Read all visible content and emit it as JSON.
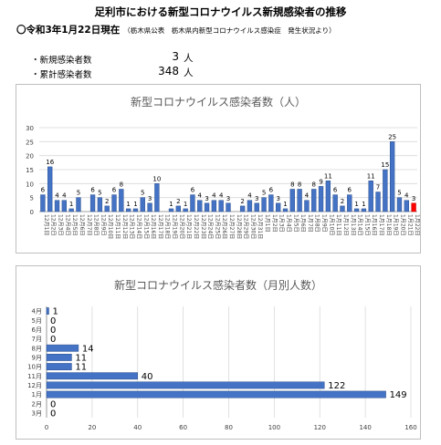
{
  "page": {
    "title": "足利市における新型コロナウイルス新規感染者の推移",
    "status_heading": "〇令和3年1月22日現在",
    "source_note": "（栃木県公表　栃木県内新型コロナウイルス感染症　発生状況より）",
    "stats": [
      {
        "label": "・新規感染者数",
        "value": "3",
        "unit": "人"
      },
      {
        "label": "・累計感染者数",
        "value": "348",
        "unit": "人"
      }
    ]
  },
  "colors": {
    "bar": "#4472c4",
    "bar_border": "#2f528f",
    "highlight": "#ff0000",
    "grid": "#d9d9d9",
    "axis": "#808080"
  },
  "chart_data": [
    {
      "type": "bar",
      "title": "新型コロナウイルス感染者数（人）",
      "categories": [
        "12月1日",
        "12月2日",
        "12月3日",
        "12月4日",
        "12月5日",
        "12月6日",
        "12月7日",
        "12月8日",
        "12月9日",
        "12月10日",
        "12月11日",
        "12月12日",
        "12月13日",
        "12月14日",
        "12月15日",
        "12月16日",
        "12月17日",
        "12月18日",
        "12月19日",
        "12月20日",
        "12月21日",
        "12月22日",
        "12月23日",
        "12月24日",
        "12月25日",
        "12月26日",
        "12月27日",
        "12月28日",
        "12月29日",
        "12月30日",
        "12月31日",
        "1月1日",
        "1月2日",
        "1月3日",
        "1月4日",
        "1月5日",
        "1月6日",
        "1月7日",
        "1月8日",
        "1月9日",
        "1月10日",
        "1月11日",
        "1月12日",
        "1月13日",
        "1月14日",
        "1月15日",
        "1月16日",
        "1月17日",
        "1月18日",
        "1月19日",
        "1月20日",
        "1月21日",
        "1月22日"
      ],
      "values": [
        6,
        16,
        4,
        4,
        1,
        5,
        null,
        6,
        5,
        2,
        6,
        8,
        1,
        1,
        5,
        3,
        10,
        null,
        1,
        2,
        1,
        6,
        4,
        3,
        4,
        4,
        3,
        null,
        2,
        4,
        3,
        5,
        6,
        3,
        1,
        8,
        8,
        4,
        8,
        9,
        11,
        6,
        2,
        6,
        1,
        1,
        11,
        7,
        15,
        25,
        5,
        4,
        3
      ],
      "highlight_last": true,
      "ylim": [
        0,
        30
      ],
      "yticks": [
        0,
        5,
        10,
        15,
        20,
        25,
        30
      ],
      "grid": true
    },
    {
      "type": "bar",
      "orientation": "horizontal",
      "title": "新型コロナウイルス感染者数（月別人数）",
      "categories": [
        "4月",
        "5月",
        "6月",
        "7月",
        "8月",
        "9月",
        "10月",
        "11月",
        "12月",
        "1月",
        "2月",
        "3月"
      ],
      "values": [
        1,
        0,
        0,
        0,
        14,
        11,
        11,
        40,
        122,
        149,
        0,
        0
      ],
      "xlim": [
        0,
        160
      ],
      "xticks": [
        0,
        20,
        40,
        60,
        80,
        100,
        120,
        140,
        160
      ],
      "grid": true
    }
  ]
}
